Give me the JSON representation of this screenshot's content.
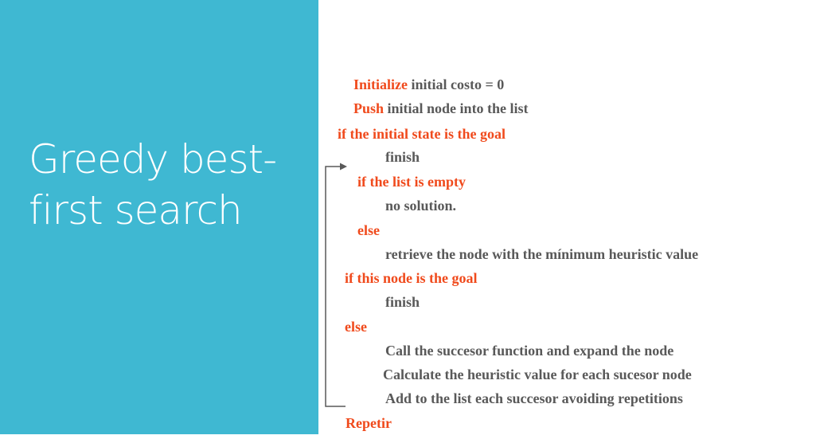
{
  "slide": {
    "title": "Greedy best-first search"
  },
  "algorithm": {
    "lines": [
      {
        "keyword": "Initialize",
        "rest": " initial costo = 0"
      },
      {
        "keyword": "Push",
        "rest": " initial node into the list"
      },
      {
        "keyword": "if the initial state is the goal",
        "rest": ""
      },
      {
        "keyword": "",
        "rest": "finish"
      },
      {
        "keyword": "if the list is empty",
        "rest": ""
      },
      {
        "keyword": "",
        "rest": "no solution."
      },
      {
        "keyword": "else",
        "rest": ""
      },
      {
        "keyword": "",
        "rest": "retrieve the node with the mínimum heuristic value"
      },
      {
        "keyword": "if this node is the goal",
        "rest": ""
      },
      {
        "keyword": "",
        "rest": "finish"
      },
      {
        "keyword": "else",
        "rest": ""
      },
      {
        "keyword": "",
        "rest": "Call the succesor function and expand the node"
      },
      {
        "keyword": "",
        "rest": "Calculate the heuristic value for each sucesor node"
      },
      {
        "keyword": "",
        "rest": "Add to the list each succesor avoiding repetitions"
      },
      {
        "keyword": "Repetir",
        "rest": ""
      }
    ]
  },
  "colors": {
    "panel": "#3fb8d2",
    "keyword": "#f04a1c",
    "text": "#595959"
  }
}
